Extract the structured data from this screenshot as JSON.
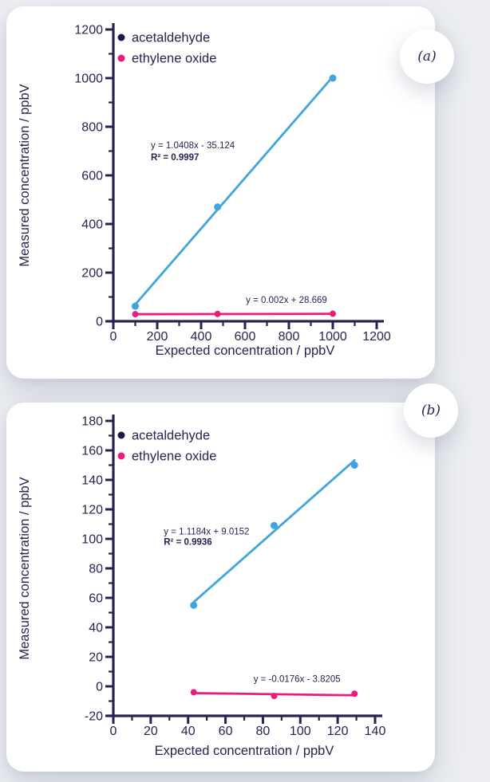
{
  "page": {
    "background": "#eceef2",
    "card_color": "#ffffff"
  },
  "colors": {
    "navy": "#272350",
    "blue": "#3fa5dc",
    "pink": "#ec1c7d",
    "legend_acetaldehyde_dot": "#1d1945"
  },
  "chart_data": [
    {
      "panel": "a",
      "label": "(a)",
      "type": "scatter",
      "title": "",
      "xlabel": "Expected concentration / ppbV",
      "ylabel": "Measured concentration / ppbV",
      "xlim": [
        0,
        1200
      ],
      "ylim": [
        0,
        1200
      ],
      "xtick_major": 200,
      "xtick_minor": 100,
      "ytick_major": 200,
      "ytick_minor": 100,
      "grid": false,
      "legend_position": "top-left",
      "series": [
        {
          "name": "acetaldehyde",
          "color": "#3fa5dc",
          "legend_dot_color": "#1d1945",
          "x": [
            100,
            475,
            1000
          ],
          "y": [
            62,
            470,
            1000
          ],
          "trendline": {
            "slope": 1.0408,
            "intercept": -35.124,
            "r2": 0.9997
          }
        },
        {
          "name": "ethylene oxide",
          "color": "#ec1c7d",
          "legend_dot_color": "#ec1c7d",
          "x": [
            100,
            475,
            1000
          ],
          "y": [
            29,
            30,
            31
          ],
          "trendline": {
            "slope": 0.002,
            "intercept": 28.669
          }
        }
      ],
      "annotations": [
        {
          "text": "y = 1.0408x - 35.124",
          "x": 171,
          "y": 711,
          "bold": false
        },
        {
          "text": "R² = 0.9997",
          "x": 171,
          "y": 662,
          "bold": true
        },
        {
          "text": "y = 0.002x + 28.669",
          "x": 604,
          "y": 75,
          "bold": false
        }
      ]
    },
    {
      "panel": "b",
      "label": "(b)",
      "type": "scatter",
      "title": "",
      "xlabel": "Expected concentration / ppbV",
      "ylabel": "Measured concentration / ppbV",
      "xlim": [
        0,
        140
      ],
      "ylim": [
        -20,
        180
      ],
      "xtick_major": 20,
      "xtick_minor": 10,
      "ytick_major": 20,
      "ytick_minor": 10,
      "grid": false,
      "legend_position": "top-left",
      "series": [
        {
          "name": "acetaldehyde",
          "color": "#3fa5dc",
          "legend_dot_color": "#1d1945",
          "x": [
            43,
            86,
            129
          ],
          "y": [
            55,
            109,
            150
          ],
          "trendline": {
            "slope": 1.1184,
            "intercept": 9.0152,
            "r2": 0.9936
          }
        },
        {
          "name": "ethylene oxide",
          "color": "#ec1c7d",
          "legend_dot_color": "#ec1c7d",
          "x": [
            43,
            86,
            129
          ],
          "y": [
            -4,
            -6.5,
            -5
          ],
          "trendline": {
            "slope": -0.0176,
            "intercept": -3.8205
          }
        }
      ],
      "annotations": [
        {
          "text": "y = 1.1184x + 9.0152",
          "x": 27,
          "y": 103,
          "bold": false
        },
        {
          "text": "R² = 0.9936",
          "x": 27,
          "y": 96,
          "bold": true
        },
        {
          "text": "y = -0.0176x - 3.8205",
          "x": 75,
          "y": 3,
          "bold": false
        }
      ]
    }
  ]
}
